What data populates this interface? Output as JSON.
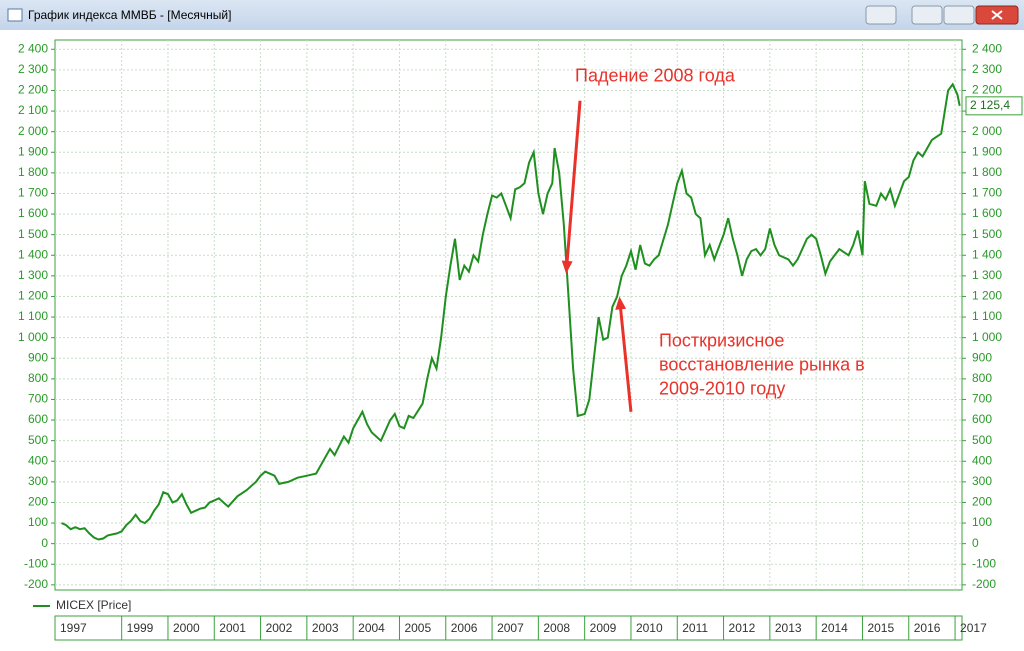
{
  "window": {
    "title": "График индекса ММВБ - [Месячный]"
  },
  "chart_data": {
    "type": "line",
    "x": [
      1997.7,
      1997.8,
      1997.9,
      1998.0,
      1998.1,
      1998.2,
      1998.3,
      1998.4,
      1998.5,
      1998.6,
      1998.7,
      1998.8,
      1998.9,
      1999.0,
      1999.1,
      1999.2,
      1999.3,
      1999.4,
      1999.5,
      1999.6,
      1999.7,
      1999.8,
      1999.9,
      2000.0,
      2000.1,
      2000.2,
      2000.3,
      2000.4,
      2000.5,
      2000.6,
      2000.7,
      2000.8,
      2000.9,
      2001.0,
      2001.1,
      2001.2,
      2001.3,
      2001.5,
      2001.7,
      2001.9,
      2002.0,
      2002.1,
      2002.3,
      2002.4,
      2002.6,
      2002.8,
      2003.0,
      2003.2,
      2003.4,
      2003.5,
      2003.6,
      2003.8,
      2003.9,
      2004.0,
      2004.2,
      2004.3,
      2004.4,
      2004.6,
      2004.8,
      2004.9,
      2005.0,
      2005.1,
      2005.2,
      2005.3,
      2005.5,
      2005.6,
      2005.7,
      2005.8,
      2005.9,
      2006.0,
      2006.1,
      2006.2,
      2006.3,
      2006.4,
      2006.5,
      2006.6,
      2006.7,
      2006.8,
      2006.9,
      2007.0,
      2007.1,
      2007.2,
      2007.3,
      2007.4,
      2007.5,
      2007.6,
      2007.7,
      2007.8,
      2007.9,
      2008.0,
      2008.1,
      2008.2,
      2008.3,
      2008.35,
      2008.45,
      2008.55,
      2008.65,
      2008.75,
      2008.85,
      2009.0,
      2009.1,
      2009.2,
      2009.3,
      2009.4,
      2009.5,
      2009.6,
      2009.7,
      2009.8,
      2009.9,
      2010.0,
      2010.1,
      2010.2,
      2010.3,
      2010.4,
      2010.5,
      2010.6,
      2010.8,
      2010.9,
      2011.0,
      2011.1,
      2011.2,
      2011.3,
      2011.4,
      2011.5,
      2011.6,
      2011.7,
      2011.8,
      2011.9,
      2012.0,
      2012.1,
      2012.2,
      2012.3,
      2012.4,
      2012.5,
      2012.6,
      2012.7,
      2012.8,
      2012.9,
      2013.0,
      2013.1,
      2013.2,
      2013.4,
      2013.5,
      2013.6,
      2013.8,
      2013.9,
      2014.0,
      2014.1,
      2014.2,
      2014.3,
      2014.5,
      2014.7,
      2014.8,
      2014.9,
      2015.0,
      2015.05,
      2015.15,
      2015.3,
      2015.4,
      2015.5,
      2015.6,
      2015.7,
      2015.8,
      2015.9,
      2016.0,
      2016.1,
      2016.2,
      2016.3,
      2016.5,
      2016.7,
      2016.85,
      2016.95,
      2017.05,
      2017.1
    ],
    "series": [
      {
        "name": "MICEX [Price]",
        "color": "#1f8f1f",
        "values": [
          100,
          90,
          70,
          80,
          70,
          75,
          50,
          30,
          20,
          25,
          40,
          45,
          50,
          60,
          90,
          110,
          140,
          110,
          100,
          120,
          160,
          190,
          250,
          240,
          200,
          210,
          240,
          190,
          150,
          160,
          170,
          175,
          200,
          210,
          220,
          200,
          180,
          230,
          260,
          300,
          330,
          350,
          330,
          290,
          300,
          320,
          330,
          340,
          420,
          460,
          430,
          520,
          490,
          560,
          640,
          580,
          540,
          500,
          600,
          630,
          570,
          560,
          620,
          610,
          680,
          800,
          900,
          850,
          1000,
          1200,
          1350,
          1480,
          1280,
          1350,
          1320,
          1400,
          1370,
          1500,
          1600,
          1690,
          1680,
          1700,
          1640,
          1580,
          1720,
          1730,
          1750,
          1850,
          1900,
          1700,
          1600,
          1700,
          1750,
          1920,
          1800,
          1550,
          1200,
          850,
          620,
          630,
          700,
          900,
          1100,
          990,
          1000,
          1150,
          1200,
          1300,
          1350,
          1420,
          1330,
          1450,
          1360,
          1350,
          1380,
          1400,
          1550,
          1650,
          1750,
          1810,
          1700,
          1680,
          1600,
          1580,
          1400,
          1450,
          1380,
          1440,
          1500,
          1580,
          1480,
          1400,
          1300,
          1380,
          1420,
          1430,
          1400,
          1430,
          1530,
          1450,
          1400,
          1380,
          1350,
          1380,
          1480,
          1500,
          1480,
          1400,
          1310,
          1370,
          1430,
          1400,
          1450,
          1520,
          1400,
          1760,
          1650,
          1640,
          1700,
          1670,
          1720,
          1640,
          1700,
          1760,
          1780,
          1860,
          1900,
          1880,
          1960,
          1990,
          2200,
          2230,
          2180,
          2125.4
        ]
      }
    ],
    "current_value": {
      "value": 2125.4,
      "label": "2 125,4"
    },
    "xlim": [
      1997.56,
      2017.15
    ],
    "xticks": [
      {
        "value": 1997.56,
        "label": "1997"
      },
      1999,
      2000,
      2001,
      2002,
      2003,
      2004,
      2005,
      2006,
      2007,
      2008,
      2009,
      2010,
      2011,
      2012,
      2013,
      2014,
      2015,
      2016,
      2017
    ],
    "ylim": [
      -225,
      2445
    ],
    "yticks": [
      -200,
      -100,
      0,
      100,
      200,
      300,
      400,
      500,
      600,
      700,
      800,
      900,
      {
        "value": 1000,
        "label": "1 000"
      },
      {
        "value": 1100,
        "label": "1 100"
      },
      {
        "value": 1200,
        "label": "1 200"
      },
      {
        "value": 1300,
        "label": "1 300"
      },
      {
        "value": 1400,
        "label": "1 400"
      },
      {
        "value": 1500,
        "label": "1 500"
      },
      {
        "value": 1600,
        "label": "1 600"
      },
      {
        "value": 1700,
        "label": "1 700"
      },
      {
        "value": 1800,
        "label": "1 800"
      },
      {
        "value": 1900,
        "label": "1 900"
      },
      {
        "value": 2000,
        "label": "2 000"
      },
      {
        "value": 2100,
        "label": "2 100"
      },
      {
        "value": 2200,
        "label": "2 200"
      },
      {
        "value": 2300,
        "label": "2 300"
      },
      {
        "value": 2400,
        "label": "2 400"
      }
    ],
    "grid": true,
    "annotations": [
      {
        "lines": [
          "Падение 2008 года"
        ],
        "color": "#e8322a",
        "x": 2008.6,
        "y": 1310,
        "from_x": 2008.9,
        "from_y": 2150
      },
      {
        "lines": [
          "Посткризисное",
          "восстановление рынка в",
          "2009-2010 году"
        ],
        "color": "#e8322a",
        "x": 2009.75,
        "y": 1200,
        "from_x": 2010.0,
        "from_y": 640
      }
    ]
  }
}
